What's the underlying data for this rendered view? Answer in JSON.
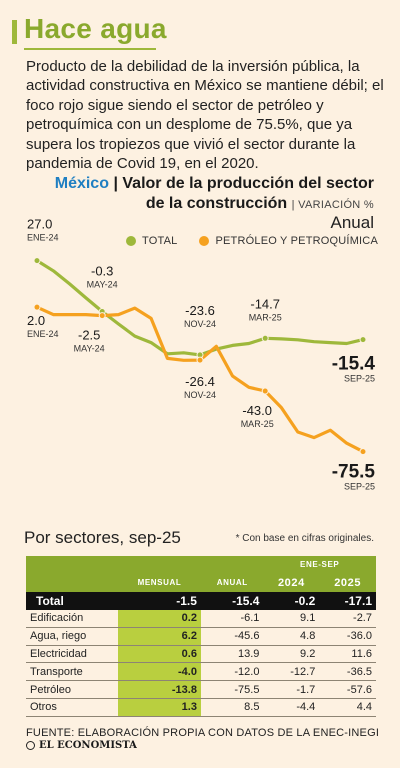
{
  "header": {
    "title": "Hace agua",
    "intro": "Producto de la debilidad de la inversión pública, la actividad constructiva en México se mantiene débil; el foco rojo sigue siendo el sector de petróleo y petroquímica con un desplome de 75.5%, que ya supera los tropiezos que vivió el sector durante la pandemia de Covid 19, en el 2020."
  },
  "chart_head": {
    "country": "México",
    "separator": "|",
    "title_line1": "Valor de la producción del sector",
    "title_line2": "de la construcción",
    "unit": "| VARIACIÓN %",
    "period": "Anual"
  },
  "colors": {
    "total": "#9eb83b",
    "petroleo": "#f5a11f",
    "title": "#8aa92d",
    "country": "#1f7fc2"
  },
  "chart_data": {
    "type": "line",
    "x": [
      "2024-01",
      "2024-02",
      "2024-03",
      "2024-04",
      "2024-05",
      "2024-06",
      "2024-07",
      "2024-08",
      "2024-09",
      "2024-10",
      "2024-11",
      "2024-12",
      "2025-01",
      "2025-02",
      "2025-03",
      "2025-04",
      "2025-05",
      "2025-06",
      "2025-07",
      "2025-08",
      "2025-09"
    ],
    "series": [
      {
        "name": "TOTAL",
        "color": "#9eb83b",
        "values": [
          27.0,
          21.5,
          14.5,
          7.0,
          -0.3,
          -7.0,
          -13.5,
          -17.0,
          -23.0,
          -22.5,
          -23.6,
          -20.5,
          -18.5,
          -17.5,
          -14.7,
          -15.0,
          -15.5,
          -16.5,
          -17.0,
          -17.5,
          -15.4
        ]
      },
      {
        "name": "PETRÓLEO Y PETROQUÍMICA",
        "color": "#f5a11f",
        "values": [
          2.0,
          -2.0,
          -2.0,
          -2.0,
          -2.5,
          -2.0,
          1.5,
          -4.0,
          -25.5,
          -26.5,
          -26.4,
          -19.0,
          -35.0,
          -41.0,
          -43.0,
          -52.0,
          -65.0,
          -68.0,
          -64.0,
          -71.0,
          -75.5
        ]
      }
    ],
    "annotations": [
      {
        "series": 0,
        "index": 0,
        "value": "27.0",
        "date": "ENE-24"
      },
      {
        "series": 0,
        "index": 4,
        "value": "-0.3",
        "date": "MAY-24"
      },
      {
        "series": 0,
        "index": 10,
        "value": "-23.6",
        "date": "NOV-24"
      },
      {
        "series": 0,
        "index": 14,
        "value": "-14.7",
        "date": "MAR-25"
      },
      {
        "series": 0,
        "index": 20,
        "value": "-15.4",
        "date": "SEP-25"
      },
      {
        "series": 1,
        "index": 0,
        "value": "2.0",
        "date": "ENE-24"
      },
      {
        "series": 1,
        "index": 4,
        "value": "-2.5",
        "date": "MAY-24"
      },
      {
        "series": 1,
        "index": 10,
        "value": "-26.4",
        "date": "NOV-24"
      },
      {
        "series": 1,
        "index": 14,
        "value": "-43.0",
        "date": "MAR-25"
      },
      {
        "series": 1,
        "index": 20,
        "value": "-75.5",
        "date": "SEP-25"
      }
    ],
    "ylim": [
      -80,
      30
    ],
    "grid": false,
    "legend": "top-right"
  },
  "sectors": {
    "title": "Por sectores, sep-25",
    "note": "* Con base en cifras originales.",
    "group_label": "ENE-SEP",
    "columns": [
      "MENSUAL",
      "ANUAL",
      "2024",
      "2025"
    ],
    "total": {
      "name": "Total",
      "values": [
        "-1.5",
        "-15.4",
        "-0.2",
        "-17.1"
      ]
    },
    "rows": [
      {
        "name": "Edificación",
        "values": [
          "0.2",
          "-6.1",
          "9.1",
          "-2.7"
        ]
      },
      {
        "name": "Agua, riego",
        "values": [
          "6.2",
          "-45.6",
          "4.8",
          "-36.0"
        ]
      },
      {
        "name": "Electricidad",
        "values": [
          "0.6",
          "13.9",
          "9.2",
          "11.6"
        ]
      },
      {
        "name": "Transporte",
        "values": [
          "-4.0",
          "-12.0",
          "-12.7",
          "-36.5"
        ]
      },
      {
        "name": "Petróleo",
        "values": [
          "-13.8",
          "-75.5",
          "-1.7",
          "-57.6"
        ]
      },
      {
        "name": "Otros",
        "values": [
          "1.3",
          "8.5",
          "-4.4",
          "4.4"
        ]
      }
    ]
  },
  "footer": {
    "source": "FUENTE: ELABORACIÓN PROPIA CON DATOS DE LA ENEC-INEGI",
    "brand": "EL ECONOMISTA"
  }
}
